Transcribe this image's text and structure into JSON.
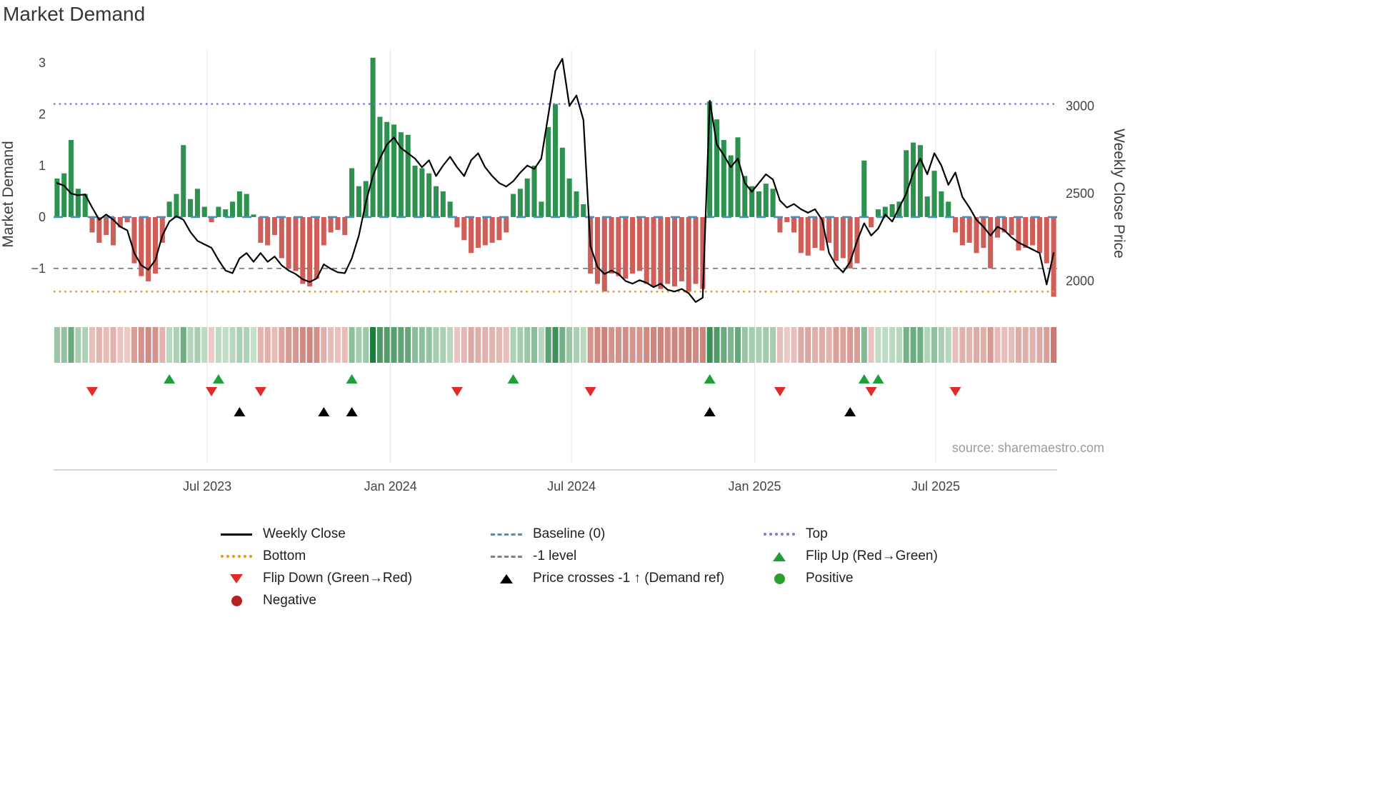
{
  "source": "source: sharemaestro.com",
  "colors": {
    "bar_green": "#2e9150",
    "bar_red": "#cd5f58",
    "price_line": "#000000",
    "baseline": "#4191c9",
    "top": "#7b7bd4",
    "bottom": "#e8920e",
    "minus1": "#7f7f7f",
    "flip_up": "#1fa037",
    "flip_down": "#e02b2b",
    "price_cross": "#000000",
    "positive": "#2ca02c",
    "negative": "#b22222",
    "heat_green_light": "#e3f0e3",
    "heat_green_dark": "#167a38",
    "heat_red_light": "#f8e3e0",
    "heat_red_dark": "#a93a30",
    "grid": "#e8e8e8",
    "axis_spine": "#c8c8c8"
  },
  "chart_data": {
    "type": "bar-line-combo",
    "title": "Market Demand",
    "ylabel_left": "Market Demand",
    "ylabel_right": "Weekly Close Price",
    "x_unit": "weeks",
    "x_ticks": [
      {
        "pos": 21.9,
        "label": "Jul 2023"
      },
      {
        "pos": 48.0,
        "label": "Jan 2024"
      },
      {
        "pos": 73.8,
        "label": "Jul 2024"
      },
      {
        "pos": 99.9,
        "label": "Jan 2025"
      },
      {
        "pos": 125.7,
        "label": "Jul 2025"
      }
    ],
    "y_ticks_left": [
      {
        "v": 3,
        "label": "3"
      },
      {
        "v": 2,
        "label": "2"
      },
      {
        "v": 1,
        "label": "1"
      },
      {
        "v": 0,
        "label": "0"
      },
      {
        "v": -1,
        "label": "−1"
      }
    ],
    "y_ticks_right": [
      {
        "v": 3000,
        "label": "3000"
      },
      {
        "v": 2500,
        "label": "2500"
      },
      {
        "v": 2000,
        "label": "2000"
      }
    ],
    "demand_ylim": [
      -1.96,
      3.25
    ],
    "price_ylim": [
      1790,
      3320
    ],
    "series": [
      {
        "name": "Market Demand",
        "type": "bar",
        "axis": "left",
        "values": [
          0.75,
          0.85,
          1.5,
          0.55,
          0.45,
          -0.3,
          -0.5,
          -0.35,
          -0.55,
          -0.2,
          -0.1,
          -0.9,
          -1.15,
          -1.25,
          -1.1,
          -0.5,
          0.3,
          0.45,
          1.4,
          0.35,
          0.55,
          0.2,
          -0.1,
          0.2,
          0.15,
          0.3,
          0.5,
          0.45,
          0.05,
          -0.5,
          -0.55,
          -0.35,
          -0.8,
          -1.0,
          -1.05,
          -1.3,
          -1.35,
          -1.2,
          -0.55,
          -0.3,
          -0.25,
          -0.35,
          0.95,
          0.6,
          0.7,
          3.1,
          1.95,
          1.85,
          1.8,
          1.65,
          1.6,
          1.0,
          0.95,
          0.85,
          0.6,
          0.5,
          0.3,
          -0.2,
          -0.45,
          -0.7,
          -0.6,
          -0.55,
          -0.5,
          -0.45,
          -0.3,
          0.45,
          0.55,
          0.75,
          1.0,
          0.3,
          1.75,
          2.2,
          1.35,
          0.75,
          0.5,
          0.25,
          -1.1,
          -1.3,
          -1.45,
          -1.1,
          -1.15,
          -1.2,
          -1.1,
          -1.05,
          -1.3,
          -1.35,
          -1.4,
          -1.3,
          -1.35,
          -1.25,
          -1.45,
          -1.3,
          -1.4,
          2.25,
          1.9,
          1.5,
          1.2,
          1.55,
          0.8,
          0.6,
          0.5,
          0.65,
          0.55,
          -0.3,
          -0.1,
          -0.3,
          -0.7,
          -0.75,
          -0.6,
          -0.65,
          -0.5,
          -0.85,
          -0.8,
          -1.0,
          -0.9,
          1.1,
          -0.2,
          0.15,
          0.2,
          0.25,
          0.3,
          1.3,
          1.45,
          1.4,
          0.4,
          0.9,
          0.5,
          0.3,
          -0.3,
          -0.55,
          -0.5,
          -0.7,
          -0.6,
          -1.0,
          -0.4,
          -0.3,
          -0.35,
          -0.65,
          -0.6,
          -0.55,
          -0.7,
          -0.9,
          -1.55
        ]
      },
      {
        "name": "Weekly Close",
        "type": "line",
        "axis": "right",
        "values": [
          2560,
          2545,
          2500,
          2490,
          2495,
          2420,
          2350,
          2380,
          2350,
          2310,
          2290,
          2160,
          2090,
          2065,
          2120,
          2260,
          2340,
          2370,
          2350,
          2280,
          2230,
          2210,
          2190,
          2120,
          2060,
          2045,
          2130,
          2160,
          2110,
          2160,
          2110,
          2140,
          2090,
          2060,
          2040,
          2010,
          1995,
          2015,
          2095,
          2070,
          2050,
          2045,
          2130,
          2260,
          2450,
          2600,
          2700,
          2780,
          2820,
          2760,
          2730,
          2700,
          2650,
          2690,
          2600,
          2660,
          2710,
          2650,
          2600,
          2690,
          2730,
          2650,
          2600,
          2560,
          2540,
          2570,
          2620,
          2660,
          2640,
          2700,
          2950,
          3200,
          3270,
          3000,
          3060,
          2920,
          2200,
          2080,
          2040,
          2060,
          2040,
          2000,
          1985,
          2005,
          1990,
          1965,
          1985,
          1950,
          1940,
          1955,
          1930,
          1880,
          1905,
          3030,
          2780,
          2720,
          2650,
          2700,
          2560,
          2510,
          2560,
          2610,
          2580,
          2460,
          2420,
          2440,
          2410,
          2390,
          2410,
          2350,
          2160,
          2090,
          2050,
          2110,
          2230,
          2330,
          2260,
          2300,
          2380,
          2340,
          2420,
          2500,
          2620,
          2700,
          2610,
          2730,
          2660,
          2550,
          2620,
          2480,
          2420,
          2350,
          2310,
          2260,
          2310,
          2290,
          2250,
          2220,
          2200,
          2180,
          2160,
          1980,
          2160
        ]
      }
    ],
    "reference_lines": [
      {
        "name": "Baseline (0)",
        "value": 0,
        "axis": "left",
        "style": "dashed",
        "color_key": "baseline"
      },
      {
        "name": "Top",
        "value": 2.2,
        "axis": "left",
        "style": "dotted",
        "color_key": "top"
      },
      {
        "name": "Bottom",
        "value": -1.45,
        "axis": "left",
        "style": "dotted",
        "color_key": "bottom"
      },
      {
        "name": "-1 level",
        "value": -1,
        "axis": "left",
        "style": "dashed",
        "color_key": "minus1"
      }
    ],
    "markers": {
      "flip_up_weeks": [
        16,
        23,
        42,
        65,
        93,
        115,
        117
      ],
      "flip_down_weeks": [
        5,
        22,
        29,
        57,
        76,
        103,
        116,
        128
      ],
      "price_cross_weeks": [
        26,
        38,
        42,
        93,
        113
      ]
    },
    "heatmap": "derived from Market Demand sign and magnitude per week"
  },
  "legend": {
    "items": [
      {
        "label": "Weekly Close",
        "symbol": "line-solid-black"
      },
      {
        "label": "Baseline (0)",
        "symbol": "line-dashed-blue"
      },
      {
        "label": "Top",
        "symbol": "line-dotted-purple"
      },
      {
        "label": "Bottom",
        "symbol": "line-dotted-orange"
      },
      {
        "label": "-1 level",
        "symbol": "line-dashed-gray"
      },
      {
        "label": "Flip Up (Red→Green)",
        "symbol": "triangle-up-green"
      },
      {
        "label": "Flip Down (Green→Red)",
        "symbol": "triangle-down-red"
      },
      {
        "label": "Price crosses -1 ↑ (Demand ref)",
        "symbol": "triangle-up-black"
      },
      {
        "label": "Positive",
        "symbol": "circle-green"
      },
      {
        "label": "Negative",
        "symbol": "circle-dark-red"
      }
    ]
  }
}
